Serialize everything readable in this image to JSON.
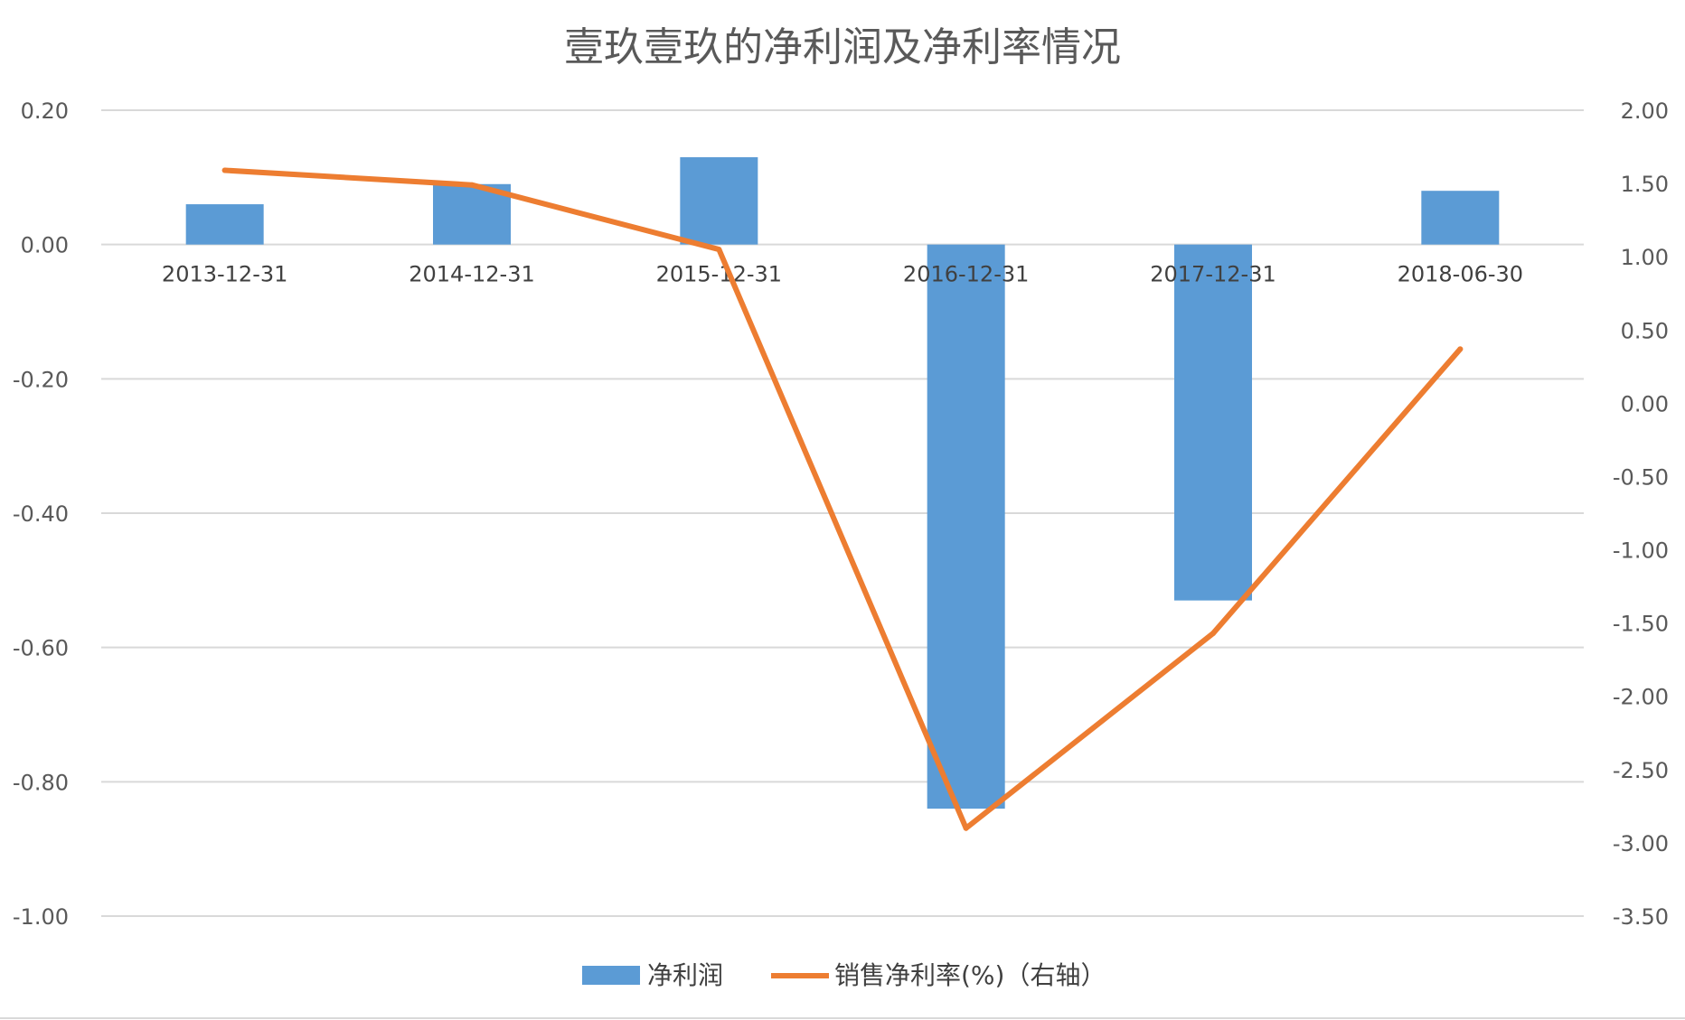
{
  "chart_data": {
    "type": "bar+line",
    "title": "壹玖壹玖的净利润及净利率情况",
    "categories": [
      "2013-12-31",
      "2014-12-31",
      "2015-12-31",
      "2016-12-31",
      "2017-12-31",
      "2018-06-30"
    ],
    "series": [
      {
        "name": "净利润",
        "type": "bar",
        "axis": "left",
        "color": "#5b9bd5",
        "values": [
          0.06,
          0.09,
          0.13,
          -0.84,
          -0.53,
          0.08
        ]
      },
      {
        "name": "销售净利率(%)（右轴）",
        "type": "line",
        "axis": "right",
        "color": "#ed7d31",
        "values": [
          1.59,
          1.49,
          1.05,
          -2.9,
          -1.57,
          0.37
        ]
      }
    ],
    "y_left": {
      "range": [
        -1.0,
        0.2
      ],
      "ticks": [
        "0.20",
        "0.00",
        "-0.20",
        "-0.40",
        "-0.60",
        "-0.80",
        "-1.00"
      ]
    },
    "y_right": {
      "range": [
        -3.5,
        2.0
      ],
      "ticks": [
        "2.00",
        "1.50",
        "1.00",
        "0.50",
        "0.00",
        "-0.50",
        "-1.00",
        "-1.50",
        "-2.00",
        "-2.50",
        "-3.00",
        "-3.50"
      ]
    },
    "grid": true,
    "legend_position": "bottom"
  }
}
